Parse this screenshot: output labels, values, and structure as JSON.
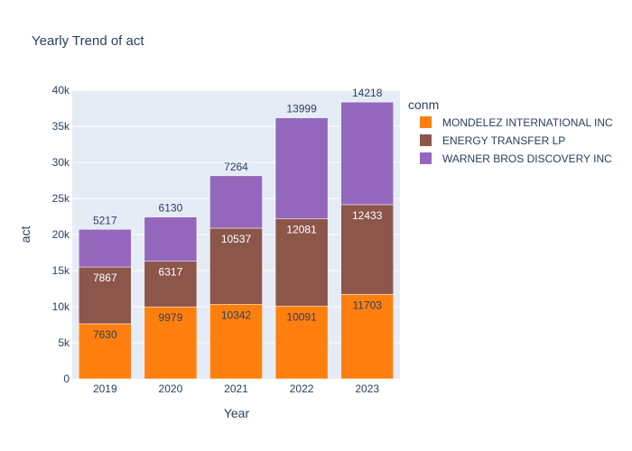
{
  "chart_data": {
    "type": "bar",
    "stacked": true,
    "title": "Yearly Trend of act",
    "xlabel": "Year",
    "ylabel": "act",
    "categories": [
      "2019",
      "2020",
      "2021",
      "2022",
      "2023"
    ],
    "ylim": [
      0,
      40000
    ],
    "yticks": [
      0,
      5000,
      10000,
      15000,
      20000,
      25000,
      30000,
      35000,
      40000
    ],
    "ytick_labels": [
      "0",
      "5k",
      "10k",
      "15k",
      "20k",
      "25k",
      "30k",
      "35k",
      "40k"
    ],
    "legend_title": "conm",
    "legend_position": "top-right",
    "grid": true,
    "series": [
      {
        "name": "MONDELEZ INTERNATIONAL INC",
        "color": "#ff7f0e",
        "values": [
          7630,
          9979,
          10342,
          10091,
          11703
        ]
      },
      {
        "name": "ENERGY TRANSFER LP",
        "color": "#8c564b",
        "values": [
          7867,
          6317,
          10537,
          12081,
          12433
        ]
      },
      {
        "name": "WARNER BROS DISCOVERY INC",
        "color": "#9467bd",
        "values": [
          5217,
          6130,
          7264,
          13999,
          14218
        ]
      }
    ]
  }
}
